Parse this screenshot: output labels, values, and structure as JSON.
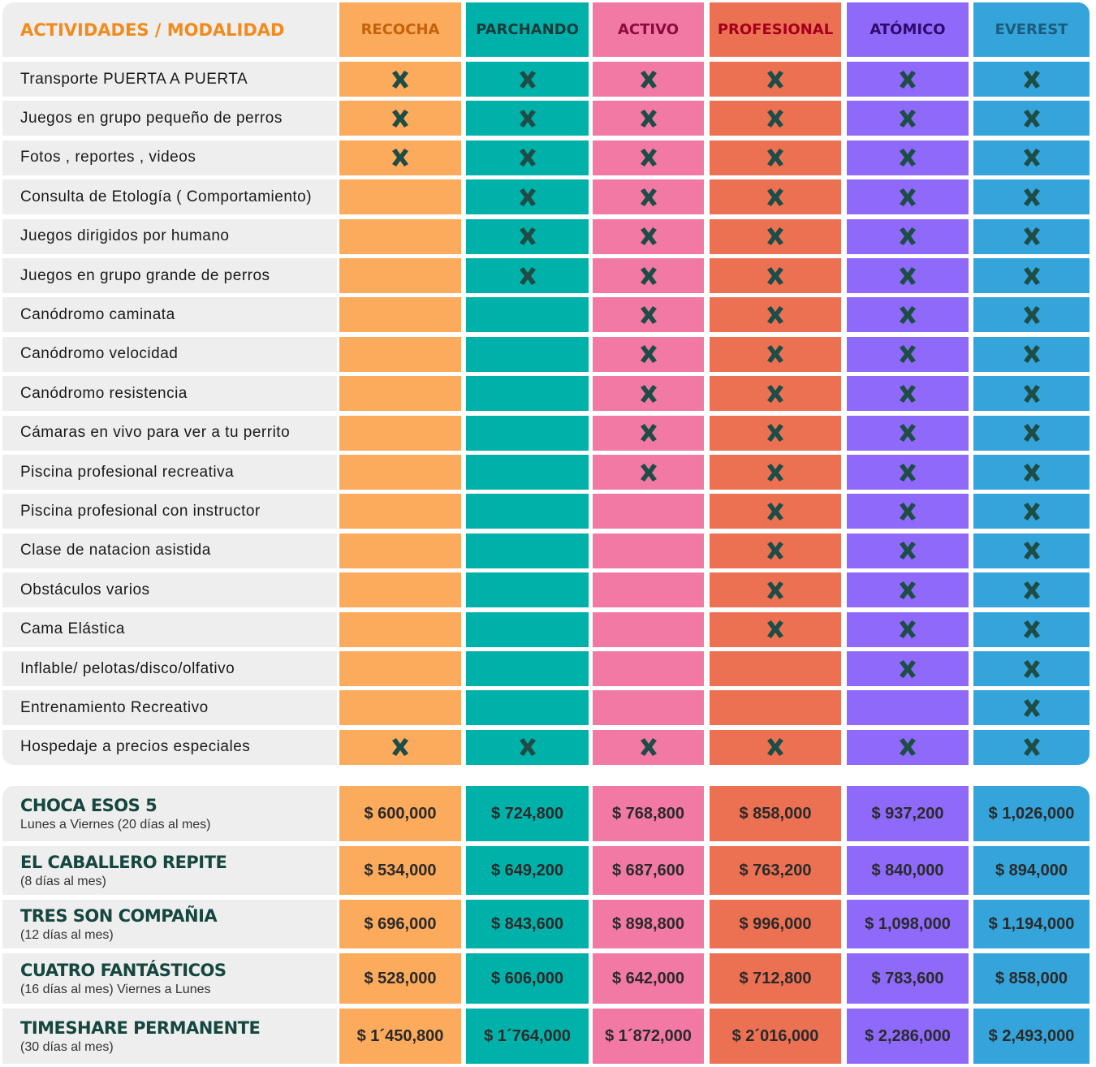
{
  "header": {
    "title": "ACTIVIDADES / MODALIDAD",
    "columns": [
      {
        "name": "RECOCHA",
        "color": "#fcaa5b",
        "text_color": "#c4620c"
      },
      {
        "name": "PARCHANDO",
        "color": "#00b1a9",
        "text_color": "#153c3b"
      },
      {
        "name": "ACTIVO",
        "color": "#f279a4",
        "text_color": "#8b0c3c"
      },
      {
        "name": "PROFESIONAL",
        "color": "#ec7153",
        "text_color": "#a4001c"
      },
      {
        "name": "ATÓMICO",
        "color": "#8f69fa",
        "text_color": "#2b0b6b"
      },
      {
        "name": "EVEREST",
        "color": "#35a4da",
        "text_color": "#1c5b7b"
      }
    ]
  },
  "features": [
    {
      "label": "Transporte PUERTA A PUERTA",
      "included": [
        true,
        true,
        true,
        true,
        true,
        true
      ]
    },
    {
      "label": "Juegos en grupo pequeño de perros",
      "included": [
        true,
        true,
        true,
        true,
        true,
        true
      ]
    },
    {
      "label": "Fotos , reportes , videos",
      "included": [
        true,
        true,
        true,
        true,
        true,
        true
      ]
    },
    {
      "label": "Consulta de Etología ( Comportamiento)",
      "included": [
        false,
        true,
        true,
        true,
        true,
        true
      ]
    },
    {
      "label": "Juegos dirigidos por humano",
      "included": [
        false,
        true,
        true,
        true,
        true,
        true
      ]
    },
    {
      "label": "Juegos en grupo grande de perros",
      "included": [
        false,
        true,
        true,
        true,
        true,
        true
      ]
    },
    {
      "label": "Canódromo caminata",
      "included": [
        false,
        false,
        true,
        true,
        true,
        true
      ]
    },
    {
      "label": "Canódromo velocidad",
      "included": [
        false,
        false,
        true,
        true,
        true,
        true
      ]
    },
    {
      "label": "Canódromo resistencia",
      "included": [
        false,
        false,
        true,
        true,
        true,
        true
      ]
    },
    {
      "label": "Cámaras en vivo para ver a tu perrito",
      "included": [
        false,
        false,
        true,
        true,
        true,
        true
      ]
    },
    {
      "label": "Piscina profesional recreativa",
      "included": [
        false,
        false,
        true,
        true,
        true,
        true
      ]
    },
    {
      "label": "Piscina profesional con instructor",
      "included": [
        false,
        false,
        false,
        true,
        true,
        true
      ]
    },
    {
      "label": "Clase de natacion asistida",
      "included": [
        false,
        false,
        false,
        true,
        true,
        true
      ]
    },
    {
      "label": "Obstáculos varios",
      "included": [
        false,
        false,
        false,
        true,
        true,
        true
      ]
    },
    {
      "label": "Cama Elástica",
      "included": [
        false,
        false,
        false,
        true,
        true,
        true
      ]
    },
    {
      "label": "Inflable/ pelotas/disco/olfativo",
      "included": [
        false,
        false,
        false,
        false,
        true,
        true
      ]
    },
    {
      "label": "Entrenamiento Recreativo",
      "included": [
        false,
        false,
        false,
        false,
        false,
        true
      ]
    },
    {
      "label": "Hospedaje a precios especiales",
      "included": [
        true,
        true,
        true,
        true,
        true,
        true
      ]
    }
  ],
  "plans": [
    {
      "name": "CHOCA ESOS 5",
      "detail": "Lunes a Viernes (20 días al mes)",
      "prices": [
        "$ 600,000",
        "$ 724,800",
        "$ 768,800",
        "$ 858,000",
        "$ 937,200",
        "$ 1,026,000"
      ]
    },
    {
      "name": "EL CABALLERO REPITE",
      "detail": "(8 días al mes)",
      "prices": [
        "$ 534,000",
        "$ 649,200",
        "$ 687,600",
        "$ 763,200",
        "$ 840,000",
        "$ 894,000"
      ]
    },
    {
      "name": "TRES SON COMPAÑIA",
      "detail": "(12 días al mes)",
      "prices": [
        "$ 696,000",
        "$ 843,600",
        "$ 898,800",
        "$ 996,000",
        "$ 1,098,000",
        "$ 1,194,000"
      ]
    },
    {
      "name": "CUATRO FANTÁSTICOS",
      "detail": "(16 días al mes) Viernes a Lunes",
      "prices": [
        "$ 528,000",
        "$ 606,000",
        "$ 642,000",
        "$ 712,800",
        "$ 783,600",
        "$ 858,000"
      ]
    },
    {
      "name": "TIMESHARE PERMANENTE",
      "detail": "(30 días al mes)",
      "prices": [
        "$ 1´450,800",
        "$ 1´764,000",
        "$ 1´872,000",
        "$ 2´016,000",
        "$ 2,286,000",
        "$ 2,493,000"
      ]
    }
  ]
}
